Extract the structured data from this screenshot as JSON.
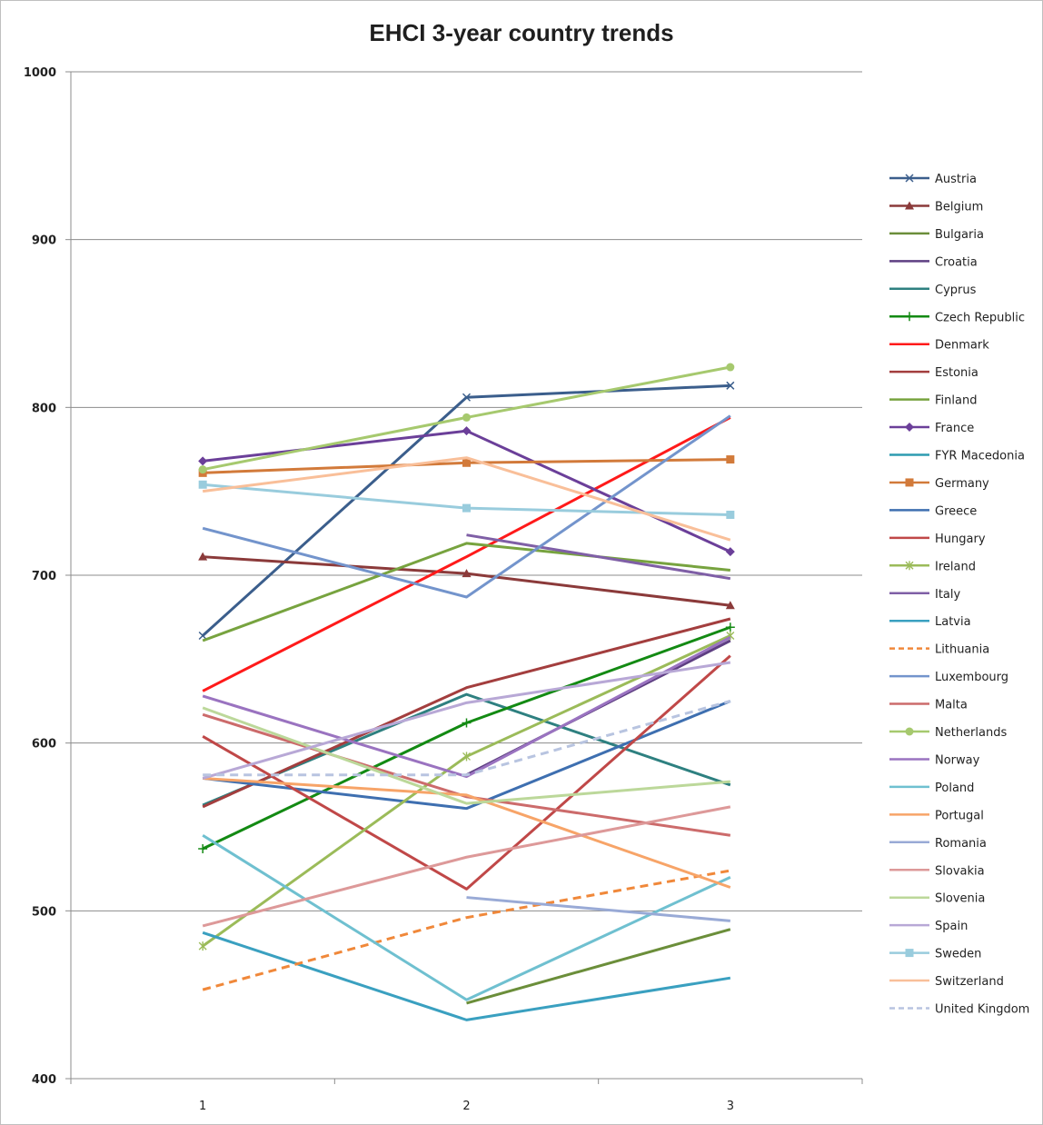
{
  "chart_data": {
    "type": "line",
    "title": "EHCI 3-year country trends",
    "xlabel": "",
    "ylabel": "",
    "x": [
      1,
      2,
      3
    ],
    "x_tick_labels": [
      "1",
      "2",
      "3"
    ],
    "ylim": [
      400,
      1000
    ],
    "y_ticks": [
      400,
      500,
      600,
      700,
      800,
      900,
      1000
    ],
    "grid": "horizontal",
    "legend": "right",
    "series": [
      {
        "name": "Austria",
        "values": [
          664,
          806,
          813
        ],
        "color": "#3b5e8c",
        "marker": "x",
        "dash": false
      },
      {
        "name": "Belgium",
        "values": [
          711,
          701,
          682
        ],
        "color": "#8b3a3a",
        "marker": "triangle",
        "dash": false
      },
      {
        "name": "Bulgaria",
        "values": [
          null,
          445,
          489
        ],
        "color": "#6b8e3a",
        "marker": "none",
        "dash": false
      },
      {
        "name": "Croatia",
        "values": [
          null,
          581,
          661
        ],
        "color": "#5e3f82",
        "marker": "none",
        "dash": false
      },
      {
        "name": "Cyprus",
        "values": [
          563,
          629,
          575
        ],
        "color": "#2e8080",
        "marker": "none",
        "dash": false
      },
      {
        "name": "Czech Republic",
        "values": [
          537,
          612,
          669
        ],
        "color": "#138a13",
        "marker": "plus",
        "dash": false
      },
      {
        "name": "Denmark",
        "values": [
          631,
          711,
          794
        ],
        "color": "#ff1a1a",
        "marker": "none",
        "dash": false
      },
      {
        "name": "Estonia",
        "values": [
          562,
          633,
          674
        ],
        "color": "#a33e3e",
        "marker": "none",
        "dash": false
      },
      {
        "name": "Finland",
        "values": [
          661,
          719,
          703
        ],
        "color": "#77a33f",
        "marker": "none",
        "dash": false
      },
      {
        "name": "France",
        "values": [
          768,
          786,
          714
        ],
        "color": "#6b3f99",
        "marker": "diamond",
        "dash": false
      },
      {
        "name": "FYR Macedonia",
        "values": [
          null,
          null,
          null
        ],
        "color": "#2e9bb0",
        "marker": "none",
        "dash": false
      },
      {
        "name": "Germany",
        "values": [
          761,
          767,
          769
        ],
        "color": "#d27a3a",
        "marker": "square",
        "dash": false
      },
      {
        "name": "Greece",
        "values": [
          579,
          561,
          625
        ],
        "color": "#3e6fb0",
        "marker": "none",
        "dash": false
      },
      {
        "name": "Hungary",
        "values": [
          604,
          513,
          652
        ],
        "color": "#c04848",
        "marker": "none",
        "dash": false
      },
      {
        "name": "Ireland",
        "values": [
          479,
          592,
          664
        ],
        "color": "#9bbb59",
        "marker": "asterisk",
        "dash": false
      },
      {
        "name": "Italy",
        "values": [
          null,
          724,
          698
        ],
        "color": "#7f5fa6",
        "marker": "none",
        "dash": false
      },
      {
        "name": "Latvia",
        "values": [
          487,
          435,
          460
        ],
        "color": "#3aa0c0",
        "marker": "none",
        "dash": false
      },
      {
        "name": "Lithuania",
        "values": [
          453,
          496,
          524
        ],
        "color": "#f0883a",
        "marker": "none",
        "dash": true
      },
      {
        "name": "Luxembourg",
        "values": [
          728,
          687,
          795
        ],
        "color": "#7394cc",
        "marker": "none",
        "dash": false
      },
      {
        "name": "Malta",
        "values": [
          617,
          568,
          545
        ],
        "color": "#cc6b6b",
        "marker": "none",
        "dash": false
      },
      {
        "name": "Netherlands",
        "values": [
          763,
          794,
          824
        ],
        "color": "#a6c96e",
        "marker": "circle",
        "dash": false
      },
      {
        "name": "Norway",
        "values": [
          628,
          580,
          663
        ],
        "color": "#9a73c0",
        "marker": "none",
        "dash": false
      },
      {
        "name": "Poland",
        "values": [
          545,
          447,
          520
        ],
        "color": "#6fc0d0",
        "marker": "none",
        "dash": false
      },
      {
        "name": "Portugal",
        "values": [
          579,
          569,
          514
        ],
        "color": "#f7a468",
        "marker": "none",
        "dash": false
      },
      {
        "name": "Romania",
        "values": [
          null,
          508,
          494
        ],
        "color": "#99aad6",
        "marker": "none",
        "dash": false
      },
      {
        "name": "Slovakia",
        "values": [
          491,
          532,
          562
        ],
        "color": "#dd9999",
        "marker": "none",
        "dash": false
      },
      {
        "name": "Slovenia",
        "values": [
          621,
          564,
          577
        ],
        "color": "#bcd89a",
        "marker": "none",
        "dash": false
      },
      {
        "name": "Spain",
        "values": [
          579,
          624,
          648
        ],
        "color": "#b8a8d6",
        "marker": "none",
        "dash": false
      },
      {
        "name": "Sweden",
        "values": [
          754,
          740,
          736
        ],
        "color": "#99ccdd",
        "marker": "square",
        "dash": false
      },
      {
        "name": "Switzerland",
        "values": [
          750,
          770,
          721
        ],
        "color": "#f9bf99",
        "marker": "none",
        "dash": false
      },
      {
        "name": "United Kingdom",
        "values": [
          581,
          581,
          625
        ],
        "color": "#b8c4e0",
        "marker": "none",
        "dash": true
      }
    ]
  }
}
